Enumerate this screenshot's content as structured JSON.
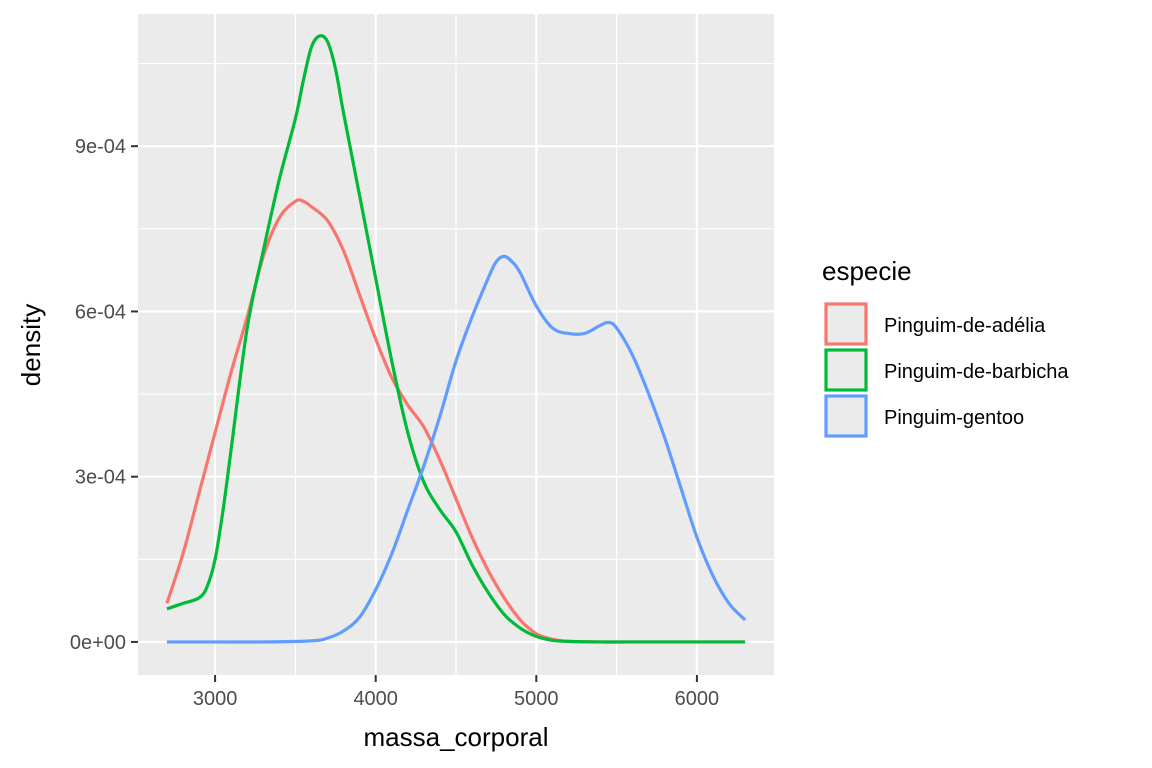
{
  "chart_data": {
    "type": "density",
    "title": "",
    "xlabel": "massa_corporal",
    "ylabel": "density",
    "xlim": [
      2520,
      6480
    ],
    "ylim": [
      -6e-05,
      0.00114
    ],
    "x_ticks": [
      3000,
      4000,
      5000,
      6000
    ],
    "x_tick_labels": [
      "3000",
      "4000",
      "5000",
      "6000"
    ],
    "y_ticks": [
      0,
      0.0003,
      0.0006,
      0.0009
    ],
    "y_tick_labels": [
      "0e+00",
      "3e-04",
      "6e-04",
      "9e-04"
    ],
    "grid": true,
    "legend": {
      "title": "especie",
      "position": "right"
    },
    "series": [
      {
        "name": "Pinguim-de-adélia",
        "color": "#F8766D",
        "x": [
          2700,
          2800,
          2900,
          3000,
          3100,
          3200,
          3300,
          3400,
          3500,
          3550,
          3600,
          3700,
          3800,
          3900,
          4000,
          4100,
          4200,
          4300,
          4400,
          4500,
          4600,
          4700,
          4800,
          4900,
          5000,
          5100,
          5200,
          5400,
          5600,
          6000,
          6300
        ],
        "values": [
          7e-05,
          0.00016,
          0.00027,
          0.00038,
          0.00049,
          0.00059,
          0.0007,
          0.00077,
          0.0008,
          0.0008,
          0.00079,
          0.000765,
          0.00071,
          0.00063,
          0.00055,
          0.00048,
          0.00043,
          0.00039,
          0.00033,
          0.00026,
          0.00019,
          0.00013,
          8e-05,
          4e-05,
          1.5e-05,
          5e-06,
          1e-06,
          0,
          0,
          0,
          0
        ]
      },
      {
        "name": "Pinguim-de-barbicha",
        "color": "#00BA38",
        "x": [
          2700,
          2800,
          2900,
          2950,
          3000,
          3050,
          3100,
          3200,
          3300,
          3400,
          3500,
          3550,
          3600,
          3650,
          3700,
          3750,
          3800,
          3900,
          4000,
          4100,
          4200,
          4300,
          4400,
          4500,
          4600,
          4700,
          4800,
          4900,
          5000,
          5100,
          5200,
          5400,
          5600,
          6000,
          6300
        ],
        "values": [
          6e-05,
          7e-05,
          8e-05,
          0.0001,
          0.00015,
          0.00024,
          0.00035,
          0.00057,
          0.00071,
          0.00084,
          0.00095,
          0.00102,
          0.00108,
          0.0011,
          0.00109,
          0.00104,
          0.00096,
          0.00081,
          0.00066,
          0.00051,
          0.00038,
          0.00029,
          0.00024,
          0.0002,
          0.00014,
          9e-05,
          5e-05,
          2.5e-05,
          1e-05,
          3e-06,
          1e-06,
          0,
          0,
          0,
          0
        ]
      },
      {
        "name": "Pinguim-gentoo",
        "color": "#619CFF",
        "x": [
          2700,
          3000,
          3300,
          3600,
          3700,
          3800,
          3900,
          4000,
          4100,
          4200,
          4300,
          4400,
          4500,
          4600,
          4700,
          4750,
          4800,
          4850,
          4900,
          5000,
          5100,
          5200,
          5300,
          5400,
          5450,
          5500,
          5600,
          5700,
          5800,
          5900,
          6000,
          6100,
          6200,
          6300
        ],
        "values": [
          0,
          0,
          0,
          2e-06,
          7e-06,
          2e-05,
          4.5e-05,
          9.5e-05,
          0.00016,
          0.00024,
          0.00032,
          0.00041,
          0.00051,
          0.00059,
          0.00066,
          0.00069,
          0.0007,
          0.00069,
          0.00067,
          0.00061,
          0.00057,
          0.00056,
          0.00056,
          0.000575,
          0.00058,
          0.00057,
          0.00052,
          0.00045,
          0.00037,
          0.00028,
          0.00019,
          0.00012,
          7e-05,
          4e-05
        ]
      }
    ]
  }
}
